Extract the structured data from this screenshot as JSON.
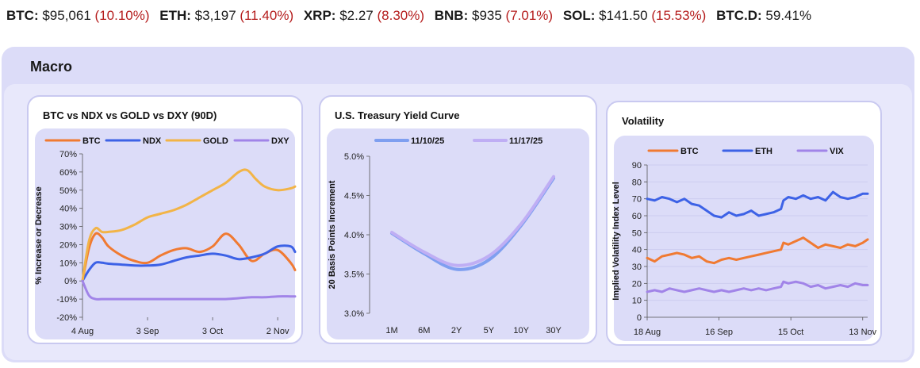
{
  "ticker": [
    {
      "symbol": "BTC:",
      "price": "$95,061",
      "change": "(10.10%)"
    },
    {
      "symbol": "ETH:",
      "price": "$3,197",
      "change": "(11.40%)"
    },
    {
      "symbol": "XRP:",
      "price": "$2.27",
      "change": "(8.30%)"
    },
    {
      "symbol": "BNB:",
      "price": "$935",
      "change": "(7.01%)"
    },
    {
      "symbol": "SOL:",
      "price": "$141.50",
      "change": "(15.53%)"
    },
    {
      "symbol": "BTC.D:",
      "price": "59.41%",
      "change": ""
    }
  ],
  "section_title": "Macro",
  "colors": {
    "btc": "#f07a32",
    "ndx": "#3d62e6",
    "gold": "#f2b447",
    "dxy": "#a184e8",
    "yc_prev": "#7f9ff0",
    "yc_curr": "#bfaef4",
    "eth": "#3d62e6",
    "vix": "#a184e8",
    "change_negative": "#b51d1d"
  },
  "chart_data": [
    {
      "type": "line",
      "title": "BTC vs NDX vs GOLD vs DXY (90D)",
      "ylabel": "% Increase or Decrease",
      "xlabel": "",
      "ylim": [
        -20,
        70
      ],
      "yticks": [
        -20,
        -10,
        0,
        10,
        20,
        30,
        40,
        50,
        60,
        70
      ],
      "ytick_labels": [
        "-20%",
        "-10%",
        "0%",
        "10%",
        "20%",
        "30%",
        "40%",
        "50%",
        "60%",
        "70%"
      ],
      "x_range": [
        0,
        98
      ],
      "xticks": [
        {
          "x": 0,
          "label": "4 Aug"
        },
        {
          "x": 30,
          "label": "3 Sep"
        },
        {
          "x": 60,
          "label": "3 Oct"
        },
        {
          "x": 90,
          "label": "2 Nov"
        }
      ],
      "legend": "top",
      "series": [
        {
          "name": "BTC",
          "color_key": "btc",
          "x": [
            0,
            3,
            6,
            9,
            12,
            18,
            24,
            30,
            36,
            42,
            48,
            54,
            60,
            66,
            72,
            78,
            84,
            90,
            96,
            98
          ],
          "y": [
            0,
            18,
            26,
            24,
            19,
            14,
            11,
            10,
            14,
            17,
            18,
            16,
            19,
            26,
            20,
            11,
            15,
            17,
            10,
            6
          ]
        },
        {
          "name": "NDX",
          "color_key": "ndx",
          "x": [
            0,
            3,
            6,
            9,
            12,
            18,
            24,
            30,
            36,
            42,
            48,
            54,
            60,
            66,
            72,
            78,
            84,
            90,
            96,
            98
          ],
          "y": [
            0,
            6,
            10,
            10,
            9.5,
            9,
            8.5,
            8.5,
            9,
            11,
            13,
            14,
            15,
            14,
            12,
            13,
            15,
            19,
            19,
            16
          ]
        },
        {
          "name": "GOLD",
          "color_key": "gold",
          "x": [
            0,
            3,
            6,
            9,
            12,
            18,
            24,
            30,
            36,
            42,
            48,
            54,
            60,
            66,
            72,
            76,
            80,
            84,
            90,
            96,
            98
          ],
          "y": [
            0,
            22,
            29,
            27,
            27,
            28,
            31,
            35,
            37,
            39,
            42,
            46,
            50,
            54,
            60,
            61,
            56,
            52,
            50,
            51,
            52
          ]
        },
        {
          "name": "DXY",
          "color_key": "dxy",
          "x": [
            0,
            3,
            6,
            9,
            12,
            18,
            24,
            30,
            36,
            42,
            48,
            54,
            60,
            66,
            72,
            78,
            84,
            90,
            96,
            98
          ],
          "y": [
            0,
            -8,
            -10,
            -10,
            -10,
            -10,
            -10,
            -10,
            -10,
            -10,
            -10,
            -10,
            -10,
            -10,
            -9.5,
            -9,
            -9,
            -8.5,
            -8.5,
            -8.5
          ]
        }
      ]
    },
    {
      "type": "line",
      "title": "U.S. Treasury Yield Curve",
      "ylabel": "20 Basis Points Increment",
      "xlabel": "",
      "ylim": [
        3.0,
        5.0
      ],
      "yticks": [
        3.0,
        3.5,
        4.0,
        4.5,
        5.0
      ],
      "ytick_labels": [
        "3.0%",
        "3.5%",
        "4.0%",
        "4.5%",
        "5.0%"
      ],
      "categories": [
        "1M",
        "6M",
        "2Y",
        "5Y",
        "10Y",
        "30Y"
      ],
      "legend": "top",
      "series": [
        {
          "name": "11/10/25",
          "color_key": "yc_prev",
          "values": [
            4.02,
            3.76,
            3.56,
            3.68,
            4.12,
            4.72
          ]
        },
        {
          "name": "11/17/25",
          "color_key": "yc_curr",
          "values": [
            4.03,
            3.78,
            3.61,
            3.73,
            4.14,
            4.74
          ]
        }
      ]
    },
    {
      "type": "line",
      "title": "Volatility",
      "ylabel": "Implied Volatility Index Level",
      "xlabel": "",
      "ylim": [
        0,
        90
      ],
      "yticks": [
        0,
        10,
        20,
        30,
        40,
        50,
        60,
        70,
        80,
        90
      ],
      "ytick_labels": [
        "0",
        "10",
        "20",
        "30",
        "40",
        "50",
        "60",
        "70",
        "80",
        "90"
      ],
      "x_range": [
        0,
        89
      ],
      "xticks": [
        {
          "x": 0,
          "label": "18 Aug"
        },
        {
          "x": 29,
          "label": "16 Sep"
        },
        {
          "x": 58,
          "label": "15 Oct"
        },
        {
          "x": 87,
          "label": "13 Nov"
        }
      ],
      "legend": "top",
      "series": [
        {
          "name": "BTC",
          "color_key": "btc",
          "x": [
            0,
            3,
            6,
            9,
            12,
            15,
            18,
            21,
            24,
            27,
            30,
            33,
            36,
            39,
            42,
            45,
            48,
            51,
            54,
            55,
            57,
            60,
            63,
            66,
            69,
            72,
            75,
            78,
            81,
            84,
            87,
            89
          ],
          "y": [
            35,
            33,
            36,
            37,
            38,
            37,
            35,
            36,
            33,
            32,
            34,
            35,
            34,
            35,
            36,
            37,
            38,
            39,
            40,
            44,
            43,
            45,
            47,
            44,
            41,
            43,
            42,
            41,
            43,
            42,
            44,
            46
          ]
        },
        {
          "name": "ETH",
          "color_key": "eth",
          "x": [
            0,
            3,
            6,
            9,
            12,
            15,
            18,
            21,
            24,
            27,
            30,
            33,
            36,
            39,
            42,
            45,
            48,
            51,
            54,
            55,
            57,
            60,
            63,
            66,
            69,
            72,
            75,
            78,
            81,
            84,
            87,
            89
          ],
          "y": [
            70,
            69,
            71,
            70,
            68,
            70,
            67,
            66,
            63,
            60,
            59,
            62,
            60,
            61,
            63,
            60,
            61,
            62,
            64,
            69,
            71,
            70,
            72,
            70,
            71,
            69,
            74,
            71,
            70,
            71,
            73,
            73
          ]
        },
        {
          "name": "VIX",
          "color_key": "vix",
          "x": [
            0,
            3,
            6,
            9,
            12,
            15,
            18,
            21,
            24,
            27,
            30,
            33,
            36,
            39,
            42,
            45,
            48,
            51,
            54,
            55,
            57,
            60,
            63,
            66,
            69,
            72,
            75,
            78,
            81,
            84,
            87,
            89
          ],
          "y": [
            15,
            16,
            15,
            17,
            16,
            15,
            16,
            17,
            16,
            15,
            16,
            15,
            16,
            17,
            16,
            17,
            16,
            17,
            18,
            21,
            20,
            21,
            20,
            18,
            19,
            17,
            18,
            19,
            18,
            20,
            19,
            19
          ]
        }
      ]
    }
  ]
}
